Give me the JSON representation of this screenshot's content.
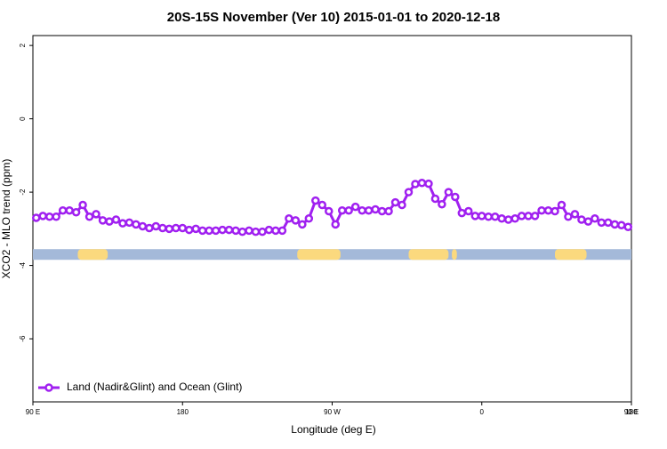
{
  "chart_data": {
    "type": "line",
    "title": "20S-15S November (Ver 10)   2015-01-01 to 2020-12-18",
    "x_label": "Longitude (deg E)",
    "y_label": "XCO2 - MLO trend (ppm)",
    "xlim": [
      90,
      450
    ],
    "ylim": [
      -7.72,
      2.27
    ],
    "xticks": [
      {
        "value": 90,
        "label": "90 E"
      },
      180,
      {
        "value": 270,
        "label": "90 W"
      },
      {
        "value": 360,
        "label": "0"
      },
      {
        "value": 450,
        "label": "90 E"
      },
      {
        "value": 540,
        "label": "180"
      }
    ],
    "yticks": [
      -6,
      -4,
      -2,
      0,
      2
    ],
    "legend": "bottomleft",
    "x": [
      92,
      96,
      100,
      104,
      108,
      112,
      116,
      120,
      124,
      128,
      132,
      136,
      140,
      144,
      148,
      152,
      156,
      160,
      164,
      168,
      172,
      176,
      180,
      184,
      188,
      192,
      196,
      200,
      204,
      208,
      212,
      216,
      220,
      224,
      228,
      232,
      236,
      240,
      244,
      248,
      252,
      256,
      260,
      264,
      268,
      272,
      276,
      280,
      284,
      288,
      292,
      296,
      300,
      304,
      308,
      312,
      316,
      320,
      324,
      328,
      332,
      336,
      340,
      344,
      348,
      352,
      356,
      360,
      364,
      368,
      372,
      376,
      380,
      384,
      388,
      392,
      396,
      400,
      404,
      408,
      412,
      416,
      420,
      424,
      428,
      432,
      436,
      440,
      444,
      448
    ],
    "series": [
      {
        "name": "Land (Nadir&Glint) and Ocean (Glint)",
        "color": "#a020f0",
        "values": [
          -2.7,
          -2.65,
          -2.67,
          -2.67,
          -2.5,
          -2.5,
          -2.55,
          -2.35,
          -2.67,
          -2.6,
          -2.77,
          -2.8,
          -2.75,
          -2.85,
          -2.83,
          -2.88,
          -2.93,
          -2.98,
          -2.93,
          -2.98,
          -3.0,
          -2.98,
          -2.98,
          -3.03,
          -3.0,
          -3.05,
          -3.05,
          -3.05,
          -3.03,
          -3.03,
          -3.05,
          -3.08,
          -3.05,
          -3.08,
          -3.08,
          -3.03,
          -3.05,
          -3.05,
          -2.72,
          -2.77,
          -2.88,
          -2.72,
          -2.23,
          -2.35,
          -2.52,
          -2.88,
          -2.5,
          -2.5,
          -2.4,
          -2.5,
          -2.5,
          -2.47,
          -2.52,
          -2.52,
          -2.28,
          -2.35,
          -2.0,
          -1.78,
          -1.75,
          -1.77,
          -2.18,
          -2.33,
          -2.0,
          -2.13,
          -2.57,
          -2.52,
          -2.65,
          -2.65,
          -2.67,
          -2.67,
          -2.72,
          -2.75,
          -2.72,
          -2.65,
          -2.65,
          -2.65,
          -2.5,
          -2.5,
          -2.52,
          -2.35,
          -2.67,
          -2.6,
          -2.75,
          -2.8,
          -2.72,
          -2.83,
          -2.83,
          -2.88,
          -2.9,
          -2.95
        ]
      }
    ],
    "surface_band": {
      "y": -3.7,
      "ocean_color": "#a4b9d9",
      "land_color": "#fbd97e",
      "land_ranges": [
        [
          117,
          135
        ],
        [
          249,
          275
        ],
        [
          316,
          340
        ],
        [
          342,
          345
        ],
        [
          404,
          423
        ]
      ]
    }
  }
}
